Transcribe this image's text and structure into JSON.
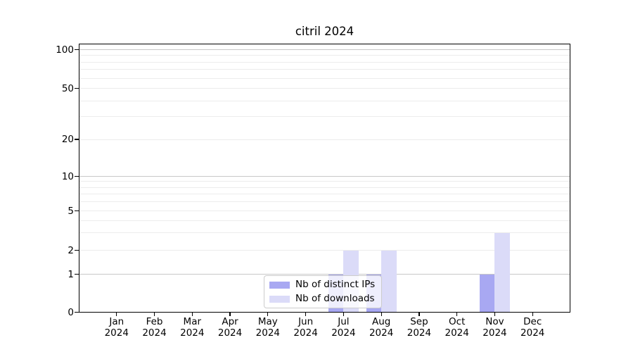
{
  "chart_data": {
    "type": "bar",
    "title": "citril 2024",
    "categories": [
      "Jan",
      "Feb",
      "Mar",
      "Apr",
      "May",
      "Jun",
      "Jul",
      "Aug",
      "Sep",
      "Oct",
      "Nov",
      "Dec"
    ],
    "year_label": "2024",
    "series": [
      {
        "name": "Nb of distinct IPs",
        "color": "#a8a8f2",
        "values": [
          0,
          0,
          0,
          0,
          0,
          0,
          1,
          1,
          0,
          0,
          1,
          0
        ]
      },
      {
        "name": "Nb of downloads",
        "color": "#dbdbf8",
        "values": [
          0,
          0,
          0,
          0,
          0,
          0,
          2,
          2,
          0,
          0,
          3,
          0
        ]
      }
    ],
    "xlabel": "",
    "ylabel": "",
    "yscale": "log-like (0 baseline, log above 1)",
    "ylim": [
      0,
      112
    ],
    "y_ticks": [
      100,
      50,
      20,
      10,
      5,
      2,
      1,
      0
    ],
    "y_major_gridlines": [
      1,
      10,
      100
    ],
    "y_minor_gridlines": [
      2,
      3,
      4,
      5,
      6,
      7,
      8,
      9,
      20,
      30,
      40,
      50,
      60,
      70,
      80,
      90
    ],
    "grid": "on",
    "legend_position": "lower center inside plot",
    "colors": {
      "major_grid": "#c8c8c8",
      "minor_grid": "#ececec",
      "spine": "#000000",
      "background": "#ffffff",
      "legend_border": "#cccccc"
    }
  }
}
